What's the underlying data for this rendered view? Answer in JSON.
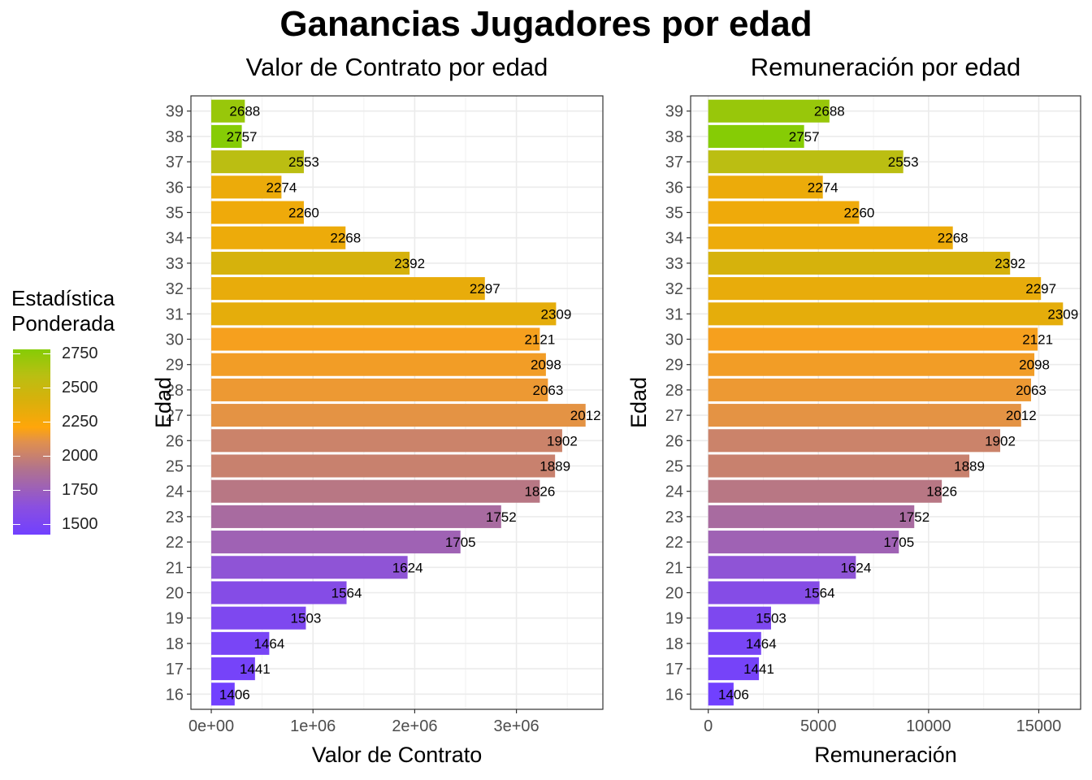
{
  "title": "Ganancias Jugadores por edad",
  "legend": {
    "title_line1": "Estadística",
    "title_line2": "Ponderada",
    "ticks": [
      "2750",
      "2500",
      "2250",
      "2000",
      "1750",
      "1500"
    ],
    "tick_values": [
      2750,
      2500,
      2250,
      2000,
      1750,
      1500
    ],
    "range": [
      1406,
      2757
    ],
    "colors": [
      "#7140ff",
      "#8a4fe0",
      "#b0728f",
      "#e0904e",
      "#ffa60a",
      "#d9b00b",
      "#b9bf12",
      "#86cc05"
    ]
  },
  "chart_data": [
    {
      "type": "bar",
      "orientation": "horizontal",
      "title": "Valor de Contrato por edad",
      "xlabel": "Valor de Contrato",
      "ylabel": "Edad",
      "xlim": [
        -200000,
        3850000
      ],
      "xticks": [
        0,
        1000000,
        2000000,
        3000000
      ],
      "xtick_labels": [
        "0e+00",
        "1e+06",
        "2e+06",
        "3e+06"
      ],
      "categories": [
        "16",
        "17",
        "18",
        "19",
        "20",
        "21",
        "22",
        "23",
        "24",
        "25",
        "26",
        "27",
        "28",
        "29",
        "30",
        "31",
        "32",
        "33",
        "34",
        "35",
        "36",
        "37",
        "38",
        "39"
      ],
      "values": [
        230000,
        430000,
        570000,
        930000,
        1330000,
        1930000,
        2450000,
        2850000,
        3230000,
        3380000,
        3450000,
        3680000,
        3310000,
        3290000,
        3230000,
        3390000,
        2690000,
        1950000,
        1320000,
        910000,
        690000,
        910000,
        300000,
        330000
      ],
      "labels": [
        "1406",
        "1441",
        "1464",
        "1503",
        "1564",
        "1624",
        "1705",
        "1752",
        "1826",
        "1889",
        "1902",
        "2012",
        "2063",
        "2098",
        "2121",
        "2309",
        "2297",
        "2392",
        "2268",
        "2260",
        "2274",
        "2553",
        "2757",
        "2688"
      ],
      "color_values": [
        1406,
        1441,
        1464,
        1503,
        1564,
        1624,
        1705,
        1752,
        1826,
        1889,
        1902,
        2012,
        2063,
        2098,
        2121,
        2309,
        2297,
        2392,
        2268,
        2260,
        2274,
        2553,
        2757,
        2688
      ],
      "grid": true
    },
    {
      "type": "bar",
      "orientation": "horizontal",
      "title": "Remuneración por edad",
      "xlabel": "Remuneración",
      "ylabel": "Edad",
      "xlim": [
        -800,
        16900
      ],
      "xticks": [
        0,
        5000,
        10000,
        15000
      ],
      "xtick_labels": [
        "0",
        "5000",
        "10000",
        "15000"
      ],
      "categories": [
        "16",
        "17",
        "18",
        "19",
        "20",
        "21",
        "22",
        "23",
        "24",
        "25",
        "26",
        "27",
        "28",
        "29",
        "30",
        "31",
        "32",
        "33",
        "34",
        "35",
        "36",
        "37",
        "38",
        "39"
      ],
      "values": [
        1150,
        2300,
        2400,
        2850,
        5050,
        6700,
        8650,
        9350,
        10600,
        11850,
        13250,
        14200,
        14650,
        14800,
        14950,
        16100,
        15100,
        13700,
        11100,
        6850,
        5200,
        8850,
        4350,
        5500
      ],
      "labels": [
        "1406",
        "1441",
        "1464",
        "1503",
        "1564",
        "1624",
        "1705",
        "1752",
        "1826",
        "1889",
        "1902",
        "2012",
        "2063",
        "2098",
        "2121",
        "2309",
        "2297",
        "2392",
        "2268",
        "2260",
        "2274",
        "2553",
        "2757",
        "2688"
      ],
      "color_values": [
        1406,
        1441,
        1464,
        1503,
        1564,
        1624,
        1705,
        1752,
        1826,
        1889,
        1902,
        2012,
        2063,
        2098,
        2121,
        2309,
        2297,
        2392,
        2268,
        2260,
        2274,
        2553,
        2757,
        2688
      ],
      "grid": true
    }
  ]
}
